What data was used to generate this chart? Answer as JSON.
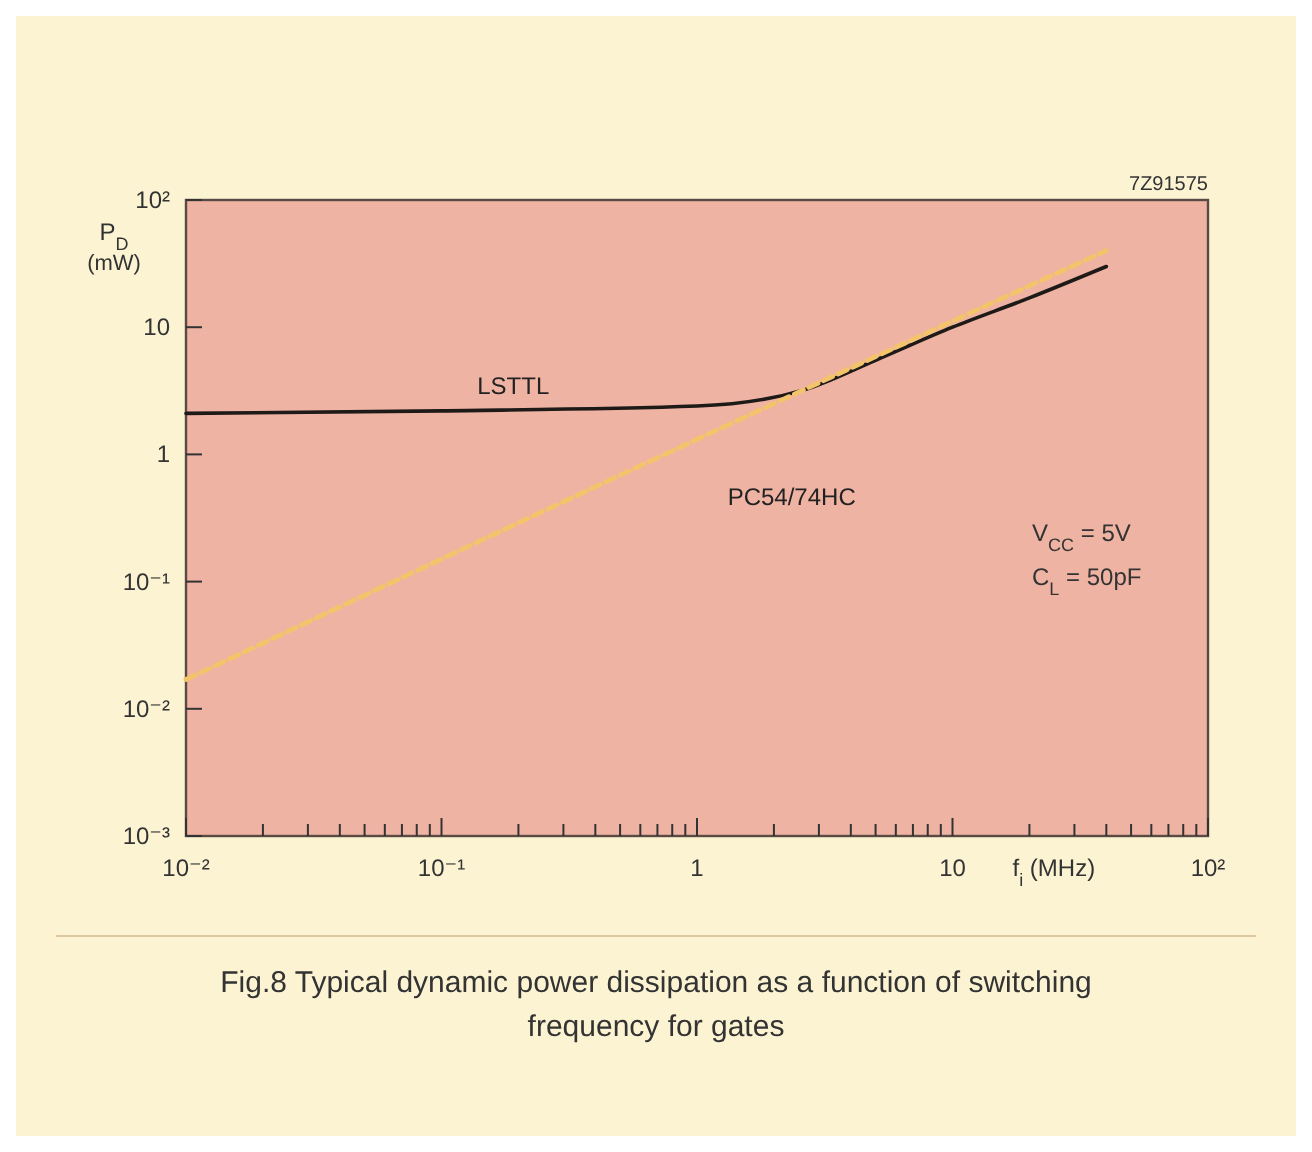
{
  "chart_data": {
    "type": "line",
    "title": "Fig.8  Typical dynamic power dissipation as a function of switching frequency for gates",
    "xlabel": "f$_{i}$  (MHz)",
    "ylabel": "P$_{D}$ (mW)",
    "log": "xy",
    "grid": false,
    "marker": "none",
    "xlim": [
      0.01,
      100
    ],
    "ylim": [
      0.001,
      100
    ],
    "xticks": [
      {
        "value": 0.01,
        "label": "10⁻²"
      },
      {
        "value": 0.02,
        "label": null
      },
      {
        "value": 0.03,
        "label": null
      },
      {
        "value": 0.04,
        "label": null
      },
      {
        "value": 0.05,
        "label": null
      },
      {
        "value": 0.06,
        "label": null
      },
      {
        "value": 0.07,
        "label": null
      },
      {
        "value": 0.08,
        "label": null
      },
      {
        "value": 0.09,
        "label": null
      },
      {
        "value": 0.1,
        "label": "10⁻¹"
      },
      {
        "value": 0.2,
        "label": null
      },
      {
        "value": 0.3,
        "label": null
      },
      {
        "value": 0.4,
        "label": null
      },
      {
        "value": 0.5,
        "label": null
      },
      {
        "value": 0.6,
        "label": null
      },
      {
        "value": 0.7,
        "label": null
      },
      {
        "value": 0.8,
        "label": null
      },
      {
        "value": 0.9,
        "label": null
      },
      1,
      {
        "value": 2,
        "label": null
      },
      {
        "value": 3,
        "label": null
      },
      {
        "value": 4,
        "label": null
      },
      {
        "value": 5,
        "label": null
      },
      {
        "value": 6,
        "label": null
      },
      {
        "value": 7,
        "label": null
      },
      {
        "value": 8,
        "label": null
      },
      {
        "value": 9,
        "label": null
      },
      10,
      {
        "value": 20,
        "label": null
      },
      {
        "value": 30,
        "label": null
      },
      {
        "value": 40,
        "label": null
      },
      {
        "value": 50,
        "label": null
      },
      {
        "value": 60,
        "label": null
      },
      {
        "value": 70,
        "label": null
      },
      {
        "value": 80,
        "label": null
      },
      {
        "value": 90,
        "label": null
      },
      {
        "value": 100,
        "label": "10²"
      }
    ],
    "yticks": [
      {
        "value": 0.001,
        "label": "10⁻³"
      },
      {
        "value": 0.01,
        "label": "10⁻²"
      },
      {
        "value": 0.1,
        "label": "10⁻¹"
      },
      1,
      10,
      {
        "value": 100,
        "label": "10²"
      }
    ],
    "series": [
      {
        "name": "LSTTL",
        "color": "#1e1a18",
        "line_style": "solid",
        "x": [
          0.01,
          0.1,
          1,
          2.6,
          5,
          10,
          20,
          40
        ],
        "values": [
          2.1,
          2.2,
          2.4,
          3.2,
          5.5,
          10,
          17,
          30
        ]
      },
      {
        "name": "PC54/74HC",
        "color": "#f3c46a",
        "line_style": "dashed",
        "x": [
          0.01,
          2.6,
          40
        ],
        "values": [
          0.017,
          3.2,
          40
        ]
      }
    ],
    "annotations": [
      "7Z91575",
      "V$_{CC}$ = 5V",
      "C$_{L}$ = 50pF"
    ]
  }
}
